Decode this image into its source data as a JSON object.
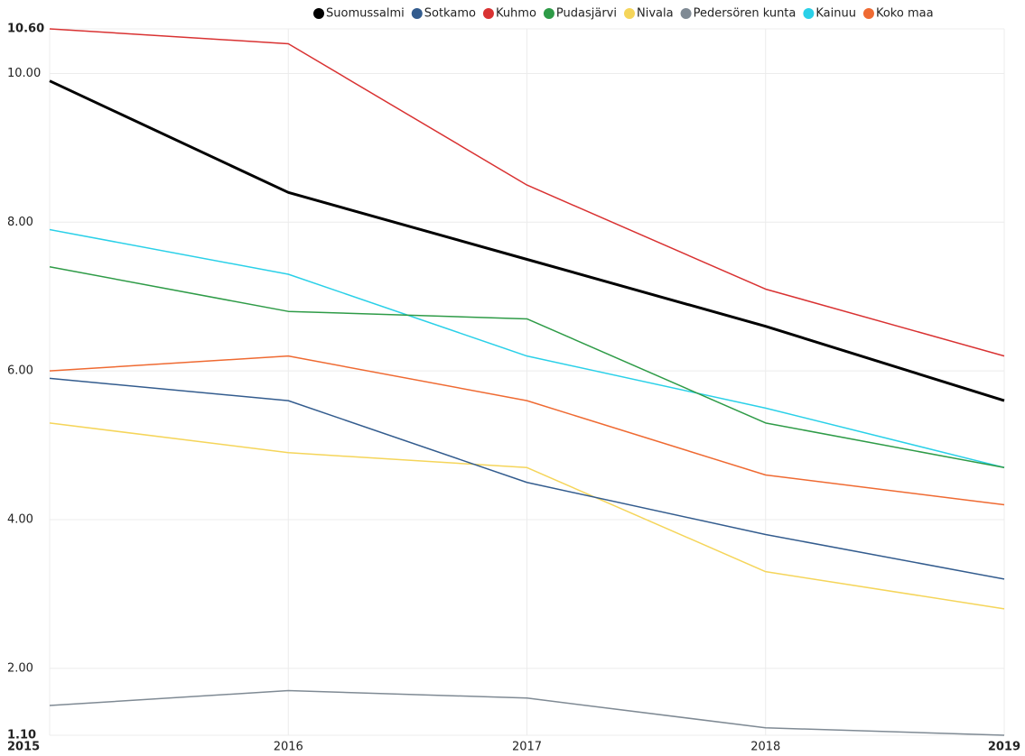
{
  "chart_data": {
    "type": "line",
    "categories": [
      "2015",
      "2016",
      "2017",
      "2018",
      "2019"
    ],
    "series": [
      {
        "name": "Suomussalmi",
        "color": "#000000",
        "values": [
          9.9,
          8.4,
          7.5,
          6.6,
          5.6
        ]
      },
      {
        "name": "Sotkamo",
        "color": "#335c8e",
        "values": [
          5.9,
          5.6,
          4.5,
          3.8,
          3.2
        ]
      },
      {
        "name": "Kuhmo",
        "color": "#d93232",
        "values": [
          10.6,
          10.4,
          8.5,
          7.1,
          6.2
        ]
      },
      {
        "name": "Pudasjärvi",
        "color": "#2e9b47",
        "values": [
          7.4,
          6.8,
          6.7,
          5.3,
          4.7
        ]
      },
      {
        "name": "Nivala",
        "color": "#f5d55a",
        "values": [
          5.3,
          4.9,
          4.7,
          3.3,
          2.8
        ]
      },
      {
        "name": "Pedersören kunta",
        "color": "#7f8a94",
        "values": [
          1.5,
          1.7,
          1.6,
          1.2,
          1.1
        ]
      },
      {
        "name": "Kainuu",
        "color": "#2ad0e8",
        "values": [
          7.9,
          7.3,
          6.2,
          5.5,
          4.7
        ]
      },
      {
        "name": "Koko maa",
        "color": "#ef6a32",
        "values": [
          6.0,
          6.2,
          5.6,
          4.6,
          4.2
        ]
      }
    ],
    "ylim": [
      1.1,
      10.6
    ],
    "yticks": [
      {
        "value": 1.1,
        "label": "1.10"
      },
      {
        "value": 2,
        "label": "2.00"
      },
      {
        "value": 4,
        "label": "4.00"
      },
      {
        "value": 6,
        "label": "6.00"
      },
      {
        "value": 8,
        "label": "8.00"
      },
      {
        "value": 10,
        "label": "10.00"
      },
      {
        "value": 10.6,
        "label": "10.60"
      }
    ],
    "grid": true,
    "legend": "top-right"
  }
}
